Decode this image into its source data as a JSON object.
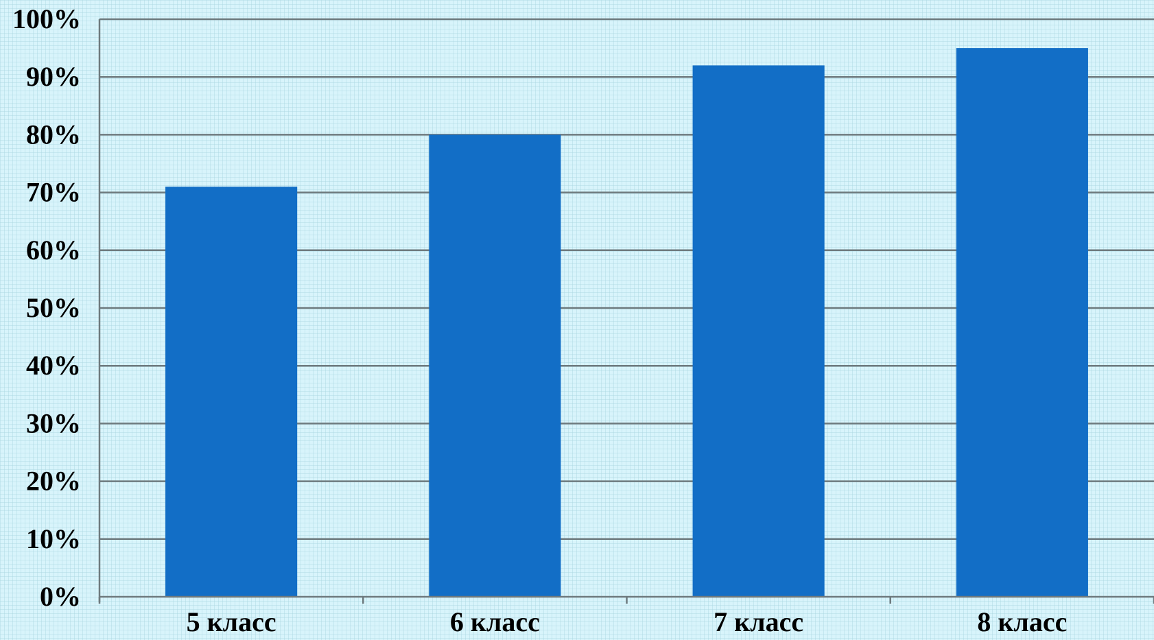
{
  "chart_data": {
    "type": "bar",
    "categories": [
      "5 класс",
      "6 класс",
      "7 класс",
      "8 класс"
    ],
    "values": [
      71,
      80,
      92,
      95
    ],
    "unit": "%",
    "y_ticks": [
      "0%",
      "10%",
      "20%",
      "30%",
      "40%",
      "50%",
      "60%",
      "70%",
      "80%",
      "90%",
      "100%"
    ],
    "ylim": [
      0,
      100
    ],
    "grid": true,
    "legend": "none",
    "title": "",
    "xlabel": "",
    "ylabel": ""
  },
  "colors": {
    "bar": "#126ec6",
    "gridline": "#6e7a7e",
    "axis": "#6e7a7e",
    "background": "#d8f4fb"
  }
}
